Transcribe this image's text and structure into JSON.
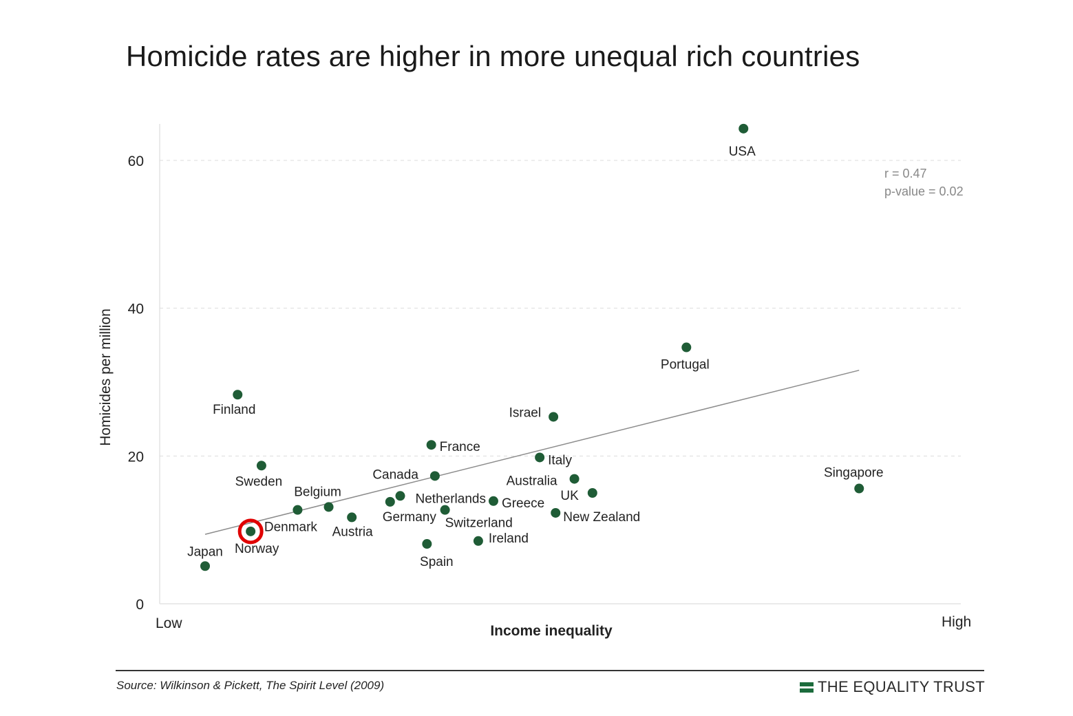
{
  "title": "Homicide rates are higher in more unequal rich countries",
  "footer": {
    "source": "Source: Wilkinson & Pickett, The Spirit Level (2009)",
    "brand": "THE EQUALITY TRUST",
    "brand_icon": "equals-bars-icon",
    "brand_color": "#1c6b3c"
  },
  "chart_data": {
    "type": "scatter",
    "title": "Homicide rates are higher in more unequal rich countries",
    "xlabel": "Income inequality",
    "ylabel": "Homicides per million",
    "x_tick_labels": [
      "Low",
      "High"
    ],
    "x_range": [
      0,
      1
    ],
    "ylim": [
      0,
      65
    ],
    "yticks": [
      0,
      20,
      40,
      60
    ],
    "grid": "horizontal dashed",
    "stats": [
      "r = 0.47",
      "p-value = 0.02"
    ],
    "point_color": "#1f5c36",
    "highlight_color": "#e00000",
    "trendline": {
      "x": [
        0.0,
        0.905
      ],
      "y": [
        9.4,
        31.6
      ]
    },
    "points": [
      {
        "label": "USA",
        "x": 0.745,
        "y": 64.3,
        "label_pos": "below"
      },
      {
        "label": "Portugal",
        "x": 0.666,
        "y": 34.7,
        "label_pos": "below"
      },
      {
        "label": "Finland",
        "x": 0.045,
        "y": 28.3,
        "label_pos": "below"
      },
      {
        "label": "Israel",
        "x": 0.482,
        "y": 25.3,
        "label_pos": "left"
      },
      {
        "label": "France",
        "x": 0.313,
        "y": 21.5,
        "label_pos": "right"
      },
      {
        "label": "Italy",
        "x": 0.463,
        "y": 19.8,
        "label_pos": "right-low"
      },
      {
        "label": "Sweden",
        "x": 0.078,
        "y": 18.7,
        "label_pos": "below"
      },
      {
        "label": "Canada",
        "x": 0.318,
        "y": 17.3,
        "label_pos": "left"
      },
      {
        "label": "Australia",
        "x": 0.511,
        "y": 16.9,
        "label_pos": "left"
      },
      {
        "label": "Singapore",
        "x": 0.905,
        "y": 15.6,
        "label_pos": "above"
      },
      {
        "label": "UK",
        "x": 0.536,
        "y": 15.0,
        "label_pos": "left"
      },
      {
        "label": "Netherlands",
        "x": 0.27,
        "y": 14.6,
        "label_pos": "right"
      },
      {
        "label": "Germany",
        "x": 0.256,
        "y": 13.8,
        "label_pos": "below"
      },
      {
        "label": "Greece",
        "x": 0.399,
        "y": 13.9,
        "label_pos": "right"
      },
      {
        "label": "Belgium",
        "x": 0.171,
        "y": 13.1,
        "label_pos": "none"
      },
      {
        "label": "Denmark",
        "x": 0.128,
        "y": 12.7,
        "label_pos": "none"
      },
      {
        "label": "Switzerland",
        "x": 0.332,
        "y": 12.7,
        "label_pos": "below"
      },
      {
        "label": "New Zealand",
        "x": 0.485,
        "y": 12.3,
        "label_pos": "right"
      },
      {
        "label": "Austria",
        "x": 0.203,
        "y": 11.7,
        "label_pos": "below"
      },
      {
        "label": "Norway",
        "x": 0.063,
        "y": 9.8,
        "label_pos": "below",
        "highlight": true
      },
      {
        "label": "Ireland",
        "x": 0.378,
        "y": 8.5,
        "label_pos": "right"
      },
      {
        "label": "Spain",
        "x": 0.307,
        "y": 8.1,
        "label_pos": "below"
      },
      {
        "label": "Japan",
        "x": 0.0,
        "y": 5.1,
        "label_pos": "above"
      }
    ]
  }
}
